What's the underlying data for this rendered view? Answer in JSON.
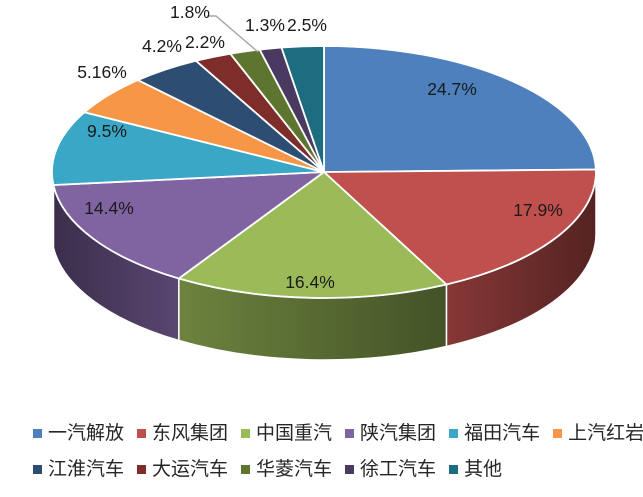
{
  "chart_data": {
    "type": "pie",
    "style": "3d",
    "title": "",
    "legend_position": "bottom",
    "categories": [
      "一汽解放",
      "东风集团",
      "中国重汽",
      "陕汽集团",
      "福田汽车",
      "上汽红岩",
      "江淮汽车",
      "大运汽车",
      "华菱汽车",
      "徐工汽车",
      "其他"
    ],
    "values": [
      24.7,
      17.9,
      16.4,
      14.4,
      9.5,
      5.16,
      4.2,
      2.2,
      1.8,
      1.3,
      2.5
    ],
    "value_labels": [
      "24.7%",
      "17.9%",
      "16.4%",
      "14.4%",
      "9.5%",
      "5.16%",
      "4.2%",
      "2.2%",
      "1.8%",
      "1.3%",
      "2.5%"
    ],
    "colors": [
      "#4d80bc",
      "#c0504d",
      "#9bbb59",
      "#8064a2",
      "#3aa7c6",
      "#f79646",
      "#2e4d73",
      "#7f2d2b",
      "#5e7530",
      "#4a3a62",
      "#1e6c80"
    ],
    "colors_meaning": "slice and legend swatch fill colors, in series order",
    "label_text_color": "#1a1a1a",
    "legend_text_color": "#262626",
    "slice_border_color": "#ffffff",
    "leader_line_color": "#a6a6a6"
  }
}
